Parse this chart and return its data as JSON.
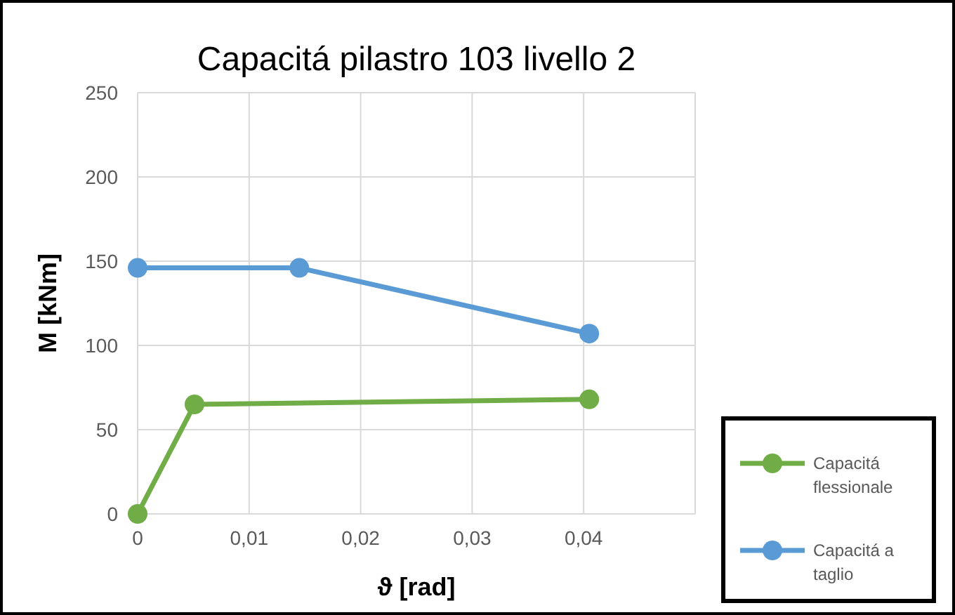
{
  "chart_data": {
    "type": "line",
    "title": "Capacitá pilastro 103 livello 2",
    "xlabel": "ϑ [rad]",
    "ylabel": "M [kNm]",
    "xlim": [
      0,
      0.05
    ],
    "xticks": [
      0,
      {
        "value": 0.01,
        "label": "0,01"
      },
      {
        "value": 0.02,
        "label": "0,02"
      },
      {
        "value": 0.03,
        "label": "0,03"
      },
      {
        "value": 0.04,
        "label": "0,04"
      }
    ],
    "ylim": [
      0,
      250
    ],
    "yticks": [
      0,
      50,
      100,
      150,
      200,
      250
    ],
    "grid": true,
    "legend": "bottom right",
    "marker": "circle",
    "line_style": "solid",
    "series": [
      {
        "name": "Capacitá flessionale",
        "color": "#70ad47",
        "x": [
          0,
          0.0051,
          0.0405
        ],
        "values": [
          0,
          65,
          68
        ]
      },
      {
        "name": "Capacitá a taglio",
        "color": "#5b9bd5",
        "x": [
          0,
          0.0145,
          0.0405
        ],
        "values": [
          146,
          146,
          107
        ]
      }
    ]
  }
}
